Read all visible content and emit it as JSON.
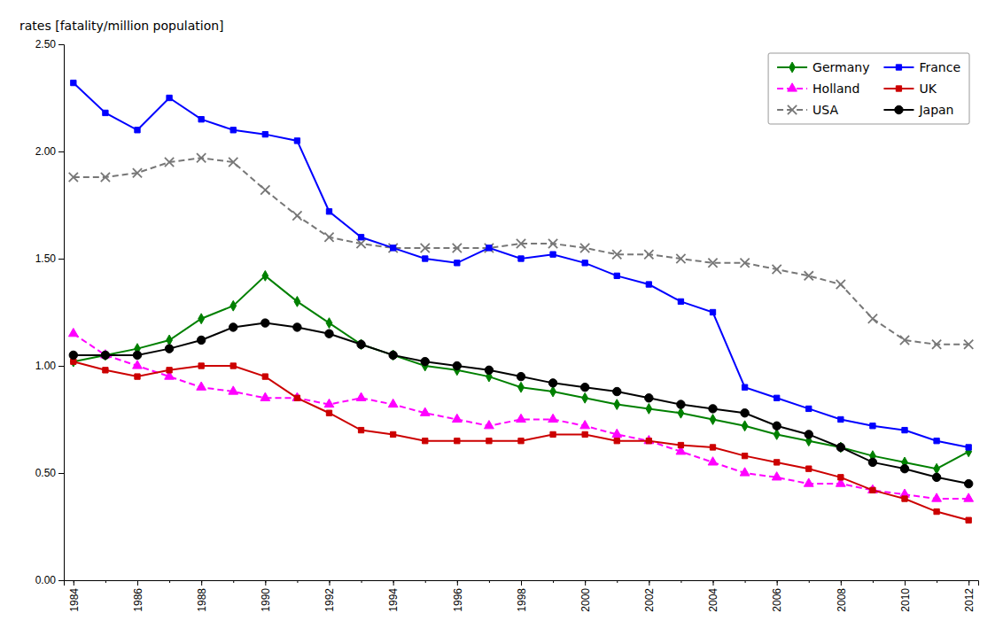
{
  "chart_data": {
    "type": "line",
    "ylabel": "rates [fatality/million population]",
    "x": [
      1984,
      1985,
      1986,
      1987,
      1988,
      1989,
      1990,
      1991,
      1992,
      1993,
      1994,
      1995,
      1996,
      1997,
      1998,
      1999,
      2000,
      2001,
      2002,
      2003,
      2004,
      2005,
      2006,
      2007,
      2008,
      2009,
      2010,
      2011,
      2012
    ],
    "series": [
      {
        "name": "Germany",
        "color": "#008000",
        "marker": "diamond",
        "line_style": "solid",
        "values": [
          1.02,
          1.05,
          1.08,
          1.12,
          1.22,
          1.28,
          1.42,
          1.3,
          1.2,
          1.1,
          1.05,
          1.0,
          0.98,
          0.95,
          0.9,
          0.88,
          0.85,
          0.82,
          0.8,
          0.78,
          0.75,
          0.72,
          0.68,
          0.65,
          0.62,
          0.58,
          0.55,
          0.52,
          0.6
        ]
      },
      {
        "name": "Holland",
        "color": "#ff00ff",
        "marker": "triangle",
        "line_style": "dashed",
        "values": [
          1.15,
          1.05,
          1.0,
          0.95,
          0.9,
          0.88,
          0.85,
          0.85,
          0.82,
          0.85,
          0.82,
          0.78,
          0.75,
          0.72,
          0.75,
          0.75,
          0.72,
          0.68,
          0.65,
          0.6,
          0.55,
          0.5,
          0.48,
          0.45,
          0.45,
          0.42,
          0.4,
          0.38,
          0.38
        ]
      },
      {
        "name": "USA",
        "color": "#777777",
        "marker": "x",
        "line_style": "dashed",
        "values": [
          1.88,
          1.88,
          1.9,
          1.95,
          1.97,
          1.95,
          1.82,
          1.7,
          1.6,
          1.57,
          1.55,
          1.55,
          1.55,
          1.55,
          1.57,
          1.57,
          1.55,
          1.52,
          1.52,
          1.5,
          1.48,
          1.48,
          1.45,
          1.42,
          1.38,
          1.22,
          1.12,
          1.1,
          1.1
        ]
      },
      {
        "name": "France",
        "color": "#0000ff",
        "marker": "square",
        "line_style": "solid",
        "values": [
          2.32,
          2.18,
          2.1,
          2.25,
          2.15,
          2.1,
          2.08,
          2.05,
          1.72,
          1.6,
          1.55,
          1.5,
          1.48,
          1.55,
          1.5,
          1.52,
          1.48,
          1.42,
          1.38,
          1.3,
          1.25,
          0.9,
          0.85,
          0.8,
          0.75,
          0.72,
          0.7,
          0.65,
          0.62
        ]
      },
      {
        "name": "UK",
        "color": "#cc0000",
        "marker": "square",
        "line_style": "solid",
        "values": [
          1.02,
          0.98,
          0.95,
          0.98,
          1.0,
          1.0,
          0.95,
          0.85,
          0.78,
          0.7,
          0.68,
          0.65,
          0.65,
          0.65,
          0.65,
          0.68,
          0.68,
          0.65,
          0.65,
          0.63,
          0.62,
          0.58,
          0.55,
          0.52,
          0.48,
          0.42,
          0.38,
          0.32,
          0.28
        ]
      },
      {
        "name": "Japan",
        "color": "#000000",
        "marker": "circle",
        "line_style": "solid",
        "values": [
          1.05,
          1.05,
          1.05,
          1.08,
          1.12,
          1.18,
          1.2,
          1.18,
          1.15,
          1.1,
          1.05,
          1.02,
          1.0,
          0.98,
          0.95,
          0.92,
          0.9,
          0.88,
          0.85,
          0.82,
          0.8,
          0.78,
          0.72,
          0.68,
          0.62,
          0.55,
          0.52,
          0.48,
          0.45
        ]
      }
    ],
    "xlim": [
      1983.7,
      2012.3
    ],
    "xticks": [
      1984,
      1986,
      1988,
      1990,
      1992,
      1994,
      1996,
      1998,
      2000,
      2002,
      2004,
      2006,
      2008,
      2010,
      2012
    ],
    "ylim": [
      0.0,
      2.5
    ],
    "yticks": [
      {
        "value": 0.0,
        "label": "0.00"
      },
      {
        "value": 0.5,
        "label": "0.50"
      },
      {
        "value": 1.0,
        "label": "1.00"
      },
      {
        "value": 1.5,
        "label": "1.50"
      },
      {
        "value": 2.0,
        "label": "2.00"
      },
      {
        "value": 2.5,
        "label": "2.50"
      }
    ],
    "grid": false,
    "legend": "upper right"
  }
}
